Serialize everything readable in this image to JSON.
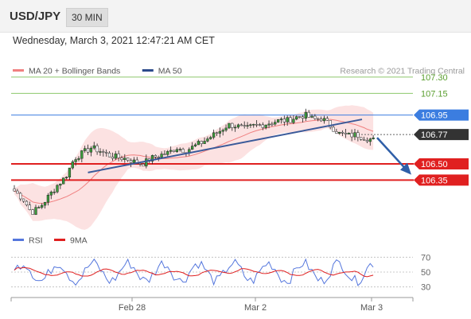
{
  "header": {
    "symbol": "USD/JPY",
    "timeframe": "30 MIN"
  },
  "timestamp": "Wednesday, March 3, 2021 12:47:21 AM CET",
  "credit": "Research © 2021 Trading Central",
  "chart_data": {
    "type": "candlestick",
    "legend": [
      {
        "label": "MA 20 + Bollinger Bands",
        "color": "#f08080"
      },
      {
        "label": "MA 50",
        "color": "#2b4a8b"
      }
    ],
    "price_axis_range": [
      105.92,
      107.38
    ],
    "x_labels": [
      "Feb 28",
      "Mar 2",
      "Mar 3"
    ],
    "close_series_approx": [
      106.25,
      106.18,
      106.05,
      106.1,
      106.2,
      106.3,
      106.38,
      106.55,
      106.6,
      106.65,
      106.62,
      106.58,
      106.56,
      106.55,
      106.52,
      106.5,
      106.55,
      106.58,
      106.6,
      106.65,
      106.62,
      106.66,
      106.7,
      106.75,
      106.8,
      106.86,
      106.85,
      106.82,
      106.85,
      106.86,
      106.88,
      106.9,
      106.9,
      106.93,
      106.95,
      106.91,
      106.92,
      106.85,
      106.78,
      106.76,
      106.77,
      106.74,
      106.72
    ],
    "lines": [
      {
        "label": "107.30",
        "value": 107.3,
        "color": "#8dc86b",
        "text_color": "#5a9e2f",
        "style": "thin"
      },
      {
        "label": "107.15",
        "value": 107.15,
        "color": "#8dc86b",
        "text_color": "#5a9e2f",
        "style": "thin"
      },
      {
        "label": "106.95",
        "value": 106.95,
        "color": "#3b7de0",
        "badge": "#3b7de0",
        "style": "solid"
      },
      {
        "label": "106.77",
        "value": 106.77,
        "color": "#666666",
        "badge": "#333333",
        "style": "dotted"
      },
      {
        "label": "106.50",
        "value": 106.5,
        "color": "#e02020",
        "badge": "#e02020",
        "style": "thick"
      },
      {
        "label": "106.35",
        "value": 106.35,
        "color": "#e02020",
        "badge": "#e02020",
        "style": "thick"
      }
    ],
    "trendline": {
      "label": "support trendline",
      "color": "#3a5a9a"
    },
    "projection_arrow": {
      "from": 106.77,
      "to": 106.4,
      "color": "#2f5fa8"
    },
    "rsi_panel": {
      "legend": [
        {
          "label": "RSI",
          "color": "#5577dd"
        },
        {
          "label": "9MA",
          "color": "#e02020"
        }
      ],
      "levels": [
        "70",
        "50",
        "30"
      ],
      "range": [
        20,
        80
      ]
    }
  }
}
